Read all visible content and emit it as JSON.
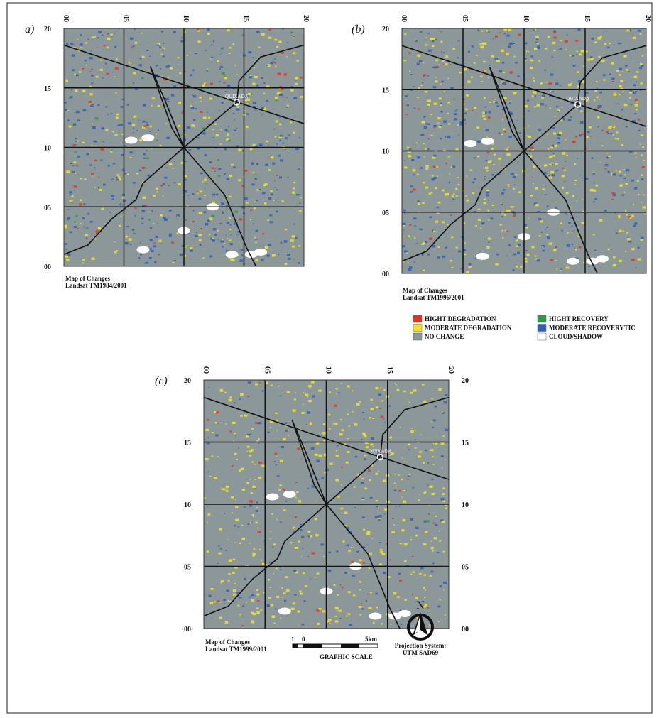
{
  "panels": [
    {
      "label": "a)",
      "top_ticks": [
        "00",
        "05",
        "10",
        "15",
        "20"
      ],
      "left_ticks": [
        "20",
        "15",
        "10",
        "05",
        "00"
      ],
      "city": "QUIXADA",
      "caption": [
        "Map of Changes",
        "Landsat TM1984/2001"
      ]
    },
    {
      "label": "(b)",
      "top_ticks": [
        "00",
        "05",
        "10",
        "15",
        "20"
      ],
      "left_ticks": [
        "20",
        "15",
        "10",
        "05",
        "00"
      ],
      "city": "QUIXADA",
      "caption": [
        "Map of Changes",
        "Landsat TM1996/2001"
      ]
    },
    {
      "label": "(c)",
      "top_ticks": [
        "00",
        "05",
        "10",
        "15",
        "20"
      ],
      "left_ticks": [
        "20",
        "15",
        "10",
        "05",
        "00"
      ],
      "right_ticks": [
        "20",
        "15",
        "10",
        "05",
        "00"
      ],
      "city": "QUIXADA",
      "caption": [
        "Map of Changes",
        "Landsat TM1999/2001"
      ]
    }
  ],
  "legend": {
    "items": [
      {
        "label": "HIGHT DEGRADATION",
        "color": "#e8321e"
      },
      {
        "label": "MODERATE DEGRADATION",
        "color": "#f2e41c"
      },
      {
        "label": "NO CHANGE",
        "color": "#8c9799"
      },
      {
        "label": "HIGHT RECOVERY",
        "color": "#2a9a4a"
      },
      {
        "label": "MODERATE RECOVERYTIC",
        "color": "#2f5fb8"
      },
      {
        "label": "CLOUD/SHADOW",
        "color": "#ffffff"
      }
    ]
  },
  "north": "N",
  "scale": {
    "ticks": [
      "1",
      "0",
      "5km"
    ],
    "title": "GRAPHIC SCALE"
  },
  "projection": [
    "Projection System:",
    "UTM SAD69"
  ]
}
